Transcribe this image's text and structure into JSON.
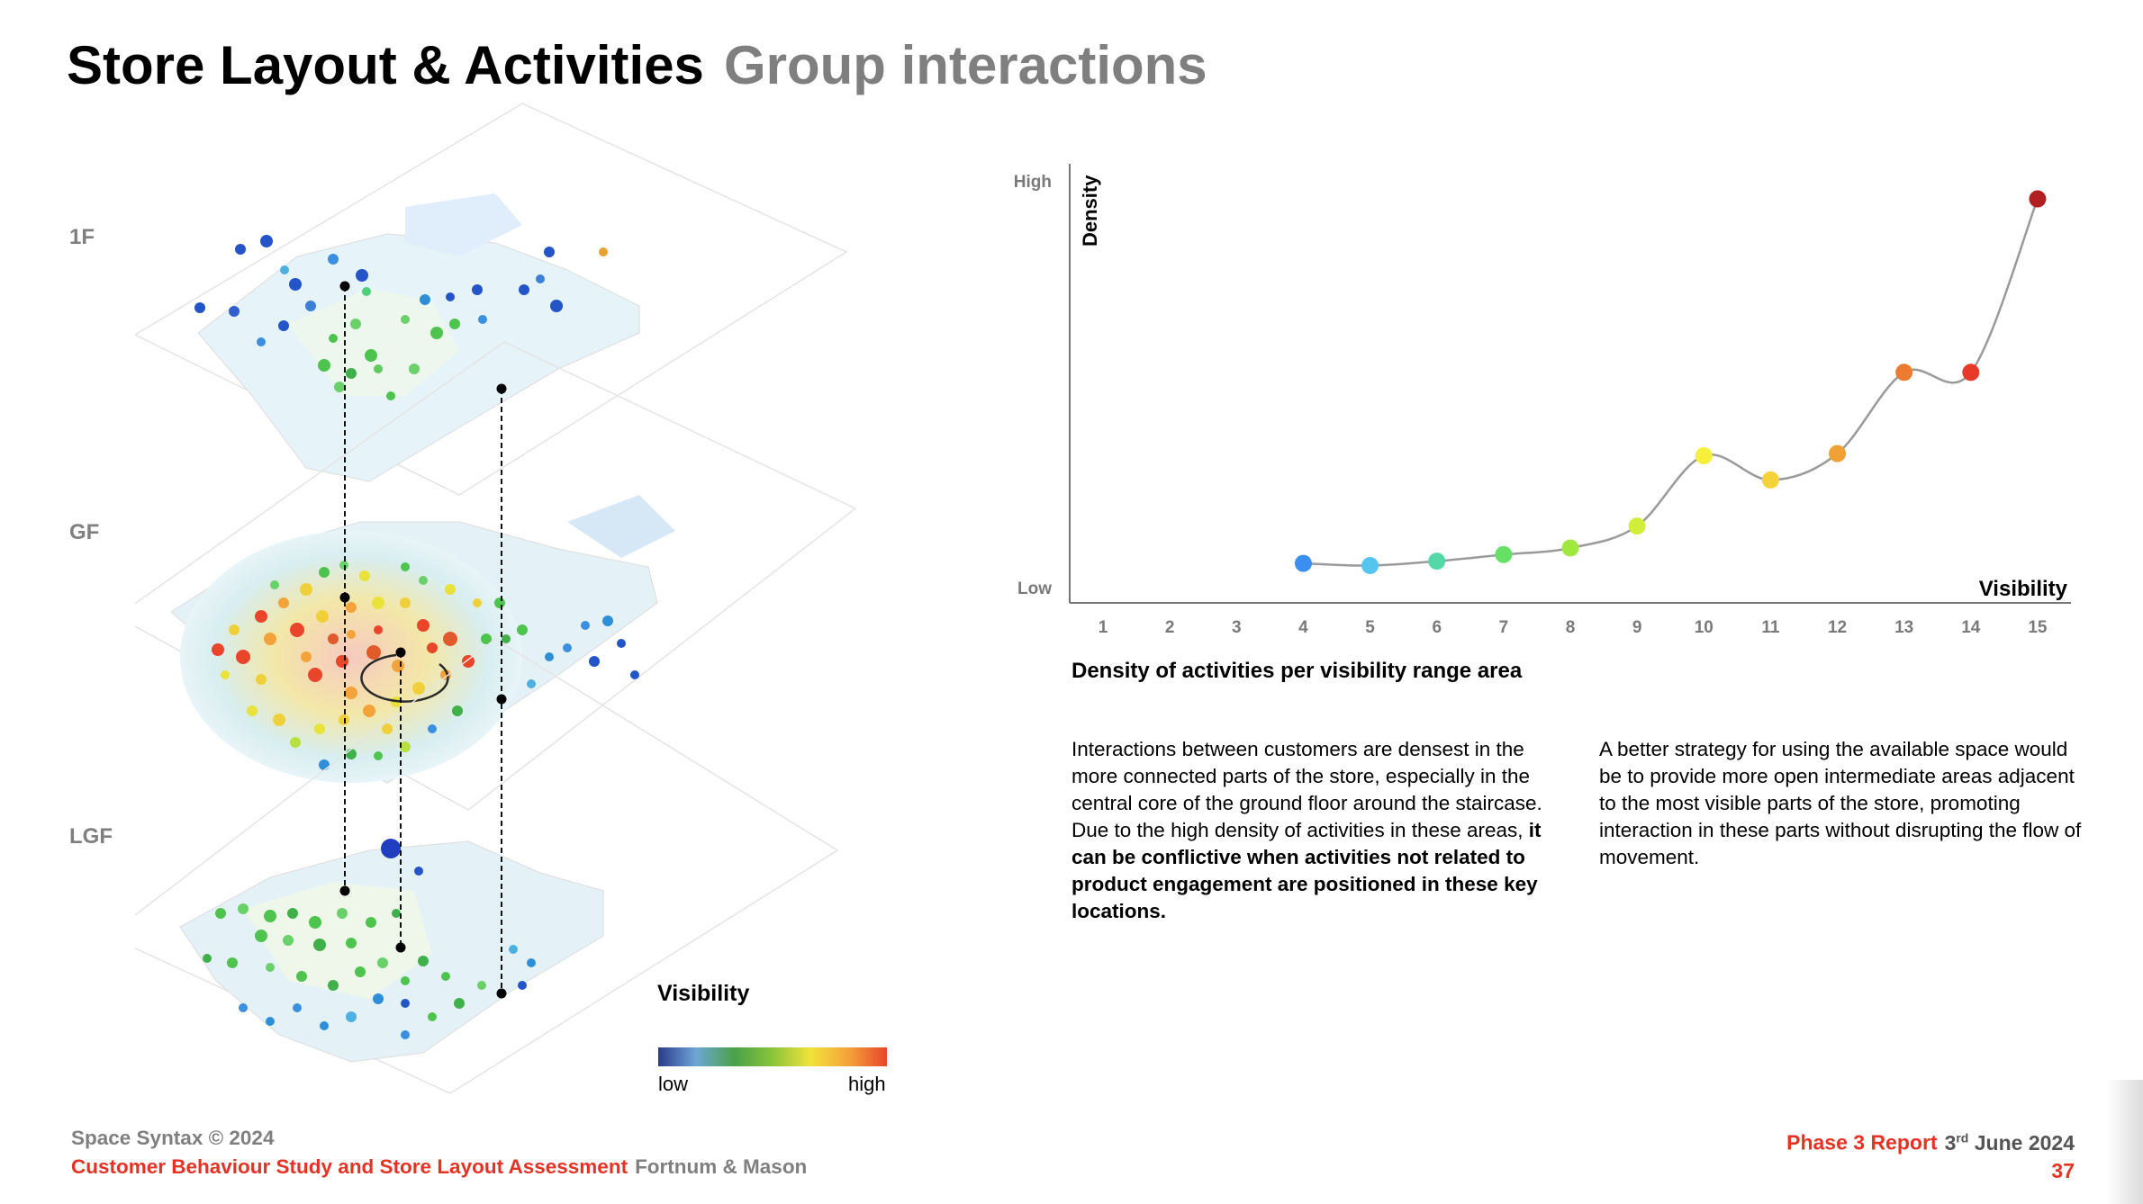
{
  "header": {
    "title": "Store Layout & Activities",
    "subtitle": "Group interactions"
  },
  "floors": {
    "f1": "1F",
    "gf": "GF",
    "lgf": "LGF"
  },
  "visibility_legend": {
    "title": "Visibility",
    "low": "low",
    "high": "high",
    "colors": [
      "#2b3b8c",
      "#6ea6d6",
      "#4aa14a",
      "#8ac43a",
      "#f2e23a",
      "#f4a23a",
      "#e8452b"
    ]
  },
  "chart_data": {
    "type": "line",
    "title": "Density of activities per visibility range area",
    "xlabel": "Visibility",
    "ylabel": "Density",
    "y_tick_labels": {
      "high": "High",
      "low": "Low"
    },
    "categories": [
      "1",
      "2",
      "3",
      "4",
      "5",
      "6",
      "7",
      "8",
      "9",
      "10",
      "11",
      "12",
      "13",
      "14",
      "15"
    ],
    "xlim": [
      0.5,
      15.5
    ],
    "ylim": [
      0,
      100
    ],
    "points": [
      {
        "x": 4.0,
        "y": 9.0,
        "color": "#3b8ff0"
      },
      {
        "x": 5.0,
        "y": 8.5,
        "color": "#55c5f0"
      },
      {
        "x": 6.0,
        "y": 9.5,
        "color": "#55d8a8"
      },
      {
        "x": 7.0,
        "y": 11.0,
        "color": "#66e066"
      },
      {
        "x": 8.0,
        "y": 12.5,
        "color": "#a0e840"
      },
      {
        "x": 9.0,
        "y": 17.5,
        "color": "#d0ee3a"
      },
      {
        "x": 10.0,
        "y": 33.5,
        "color": "#f6f03a"
      },
      {
        "x": 11.0,
        "y": 28.0,
        "color": "#f5d23a"
      },
      {
        "x": 12.0,
        "y": 34.0,
        "color": "#f0a035"
      },
      {
        "x": 13.0,
        "y": 52.5,
        "color": "#ec7a30"
      },
      {
        "x": 14.0,
        "y": 52.5,
        "color": "#e83a2a"
      },
      {
        "x": 15.0,
        "y": 92.0,
        "color": "#b02020"
      }
    ],
    "line_color": "#9a9a9a",
    "grid": false
  },
  "paragraphs": {
    "p1_normal": "Interactions between customers are densest in the more connected parts of the store, especially in the central core of the ground floor around the staircase. Due to the high density of activities in these areas, ",
    "p1_bold": "it can be conflictive when activities not related to product engagement are positioned in these key locations.",
    "p2": "A better strategy for using the available space would be to provide more open intermediate areas adjacent to the most visible parts of the store, promoting interaction in these parts without disrupting the flow of movement."
  },
  "footer": {
    "copyright": "Space Syntax © 2024",
    "study": "Customer Behaviour Study and Store Layout Assessment",
    "client": "Fortnum & Mason",
    "report": "Phase 3 Report",
    "date_day": "3",
    "date_suffix": "rd",
    "date_rest": "June 2024",
    "page_number": "37"
  }
}
